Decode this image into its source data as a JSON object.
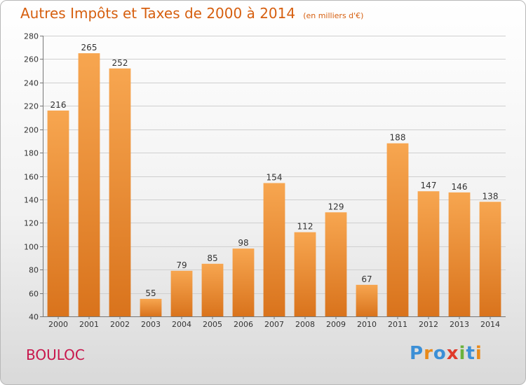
{
  "chart_data": {
    "type": "bar",
    "title": "Autres Impôts et Taxes de 2000 à 2014",
    "subtitle": "(en milliers d'€)",
    "categories": [
      "2000",
      "2001",
      "2002",
      "2003",
      "2004",
      "2005",
      "2006",
      "2007",
      "2008",
      "2009",
      "2010",
      "2011",
      "2012",
      "2013",
      "2014"
    ],
    "values": [
      216,
      265,
      252,
      55,
      79,
      85,
      98,
      154,
      112,
      129,
      67,
      188,
      147,
      146,
      138
    ],
    "ylim": [
      40,
      280
    ],
    "yticks": [
      40,
      60,
      80,
      100,
      120,
      140,
      160,
      180,
      200,
      220,
      240,
      260,
      280
    ],
    "grid": true,
    "bar_color_light": "#f7a650",
    "bar_color_dark": "#d9731c"
  },
  "footer": {
    "place": "BOULOC",
    "logo_text": "Proxiti",
    "logo_colors": [
      "#3b8fd6",
      "#e98a1a",
      "#3b8fd6",
      "#e03a2a",
      "#6ab23e",
      "#3b8fd6",
      "#e98a1a"
    ]
  }
}
